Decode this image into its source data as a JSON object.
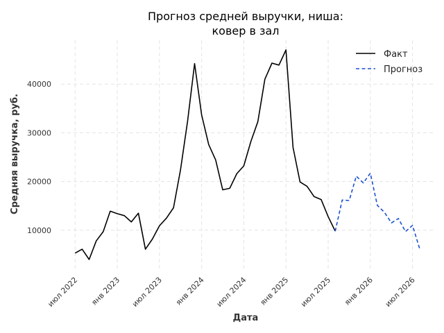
{
  "chart_data": {
    "type": "line",
    "title_lines": [
      "Прогноз средней выручки, ниша:",
      "ковер в зал"
    ],
    "xlabel": "Дата",
    "ylabel": "Средняя выручка, руб.",
    "x_ticks": [
      {
        "date": "2022-07",
        "label": "июл 2022"
      },
      {
        "date": "2023-01",
        "label": "янв 2023"
      },
      {
        "date": "2023-07",
        "label": "июл 2023"
      },
      {
        "date": "2024-01",
        "label": "янв 2024"
      },
      {
        "date": "2024-07",
        "label": "июл 2024"
      },
      {
        "date": "2025-01",
        "label": "янв 2025"
      },
      {
        "date": "2025-07",
        "label": "июл 2025"
      },
      {
        "date": "2026-01",
        "label": "янв 2026"
      },
      {
        "date": "2026-07",
        "label": "июл 2026"
      }
    ],
    "y_ticks": [
      10000,
      20000,
      30000,
      40000
    ],
    "xlim": [
      "2022-05",
      "2026-10"
    ],
    "ylim": [
      2000,
      49000
    ],
    "grid": true,
    "legend_position": "top-right",
    "series": [
      {
        "name": "Факт",
        "color": "#000000",
        "style": "solid",
        "x": [
          "2022-07",
          "2022-08",
          "2022-09",
          "2022-10",
          "2022-11",
          "2022-12",
          "2023-01",
          "2023-02",
          "2023-03",
          "2023-04",
          "2023-05",
          "2023-06",
          "2023-07",
          "2023-08",
          "2023-09",
          "2023-10",
          "2023-11",
          "2023-12",
          "2024-01",
          "2024-02",
          "2024-03",
          "2024-04",
          "2024-05",
          "2024-06",
          "2024-07",
          "2024-08",
          "2024-09",
          "2024-10",
          "2024-11",
          "2024-12",
          "2025-01",
          "2025-02",
          "2025-03",
          "2025-04",
          "2025-05",
          "2025-06",
          "2025-07",
          "2025-08"
        ],
        "values": [
          5300,
          6100,
          4000,
          7800,
          9700,
          13900,
          13400,
          13000,
          11700,
          13500,
          6100,
          8200,
          10900,
          12500,
          14600,
          22400,
          32400,
          44200,
          33700,
          27600,
          24400,
          18300,
          18600,
          21600,
          23200,
          28200,
          32300,
          41000,
          44300,
          43900,
          47000,
          27000,
          19900,
          19000,
          16900,
          16300,
          12800,
          9800
        ]
      },
      {
        "name": "Прогноз",
        "color": "#1a4fd1",
        "style": "dashed",
        "x": [
          "2025-08",
          "2025-09",
          "2025-10",
          "2025-11",
          "2025-12",
          "2026-01",
          "2026-02",
          "2026-03",
          "2026-04",
          "2026-05",
          "2026-06",
          "2026-07",
          "2026-08"
        ],
        "values": [
          9800,
          16200,
          16100,
          21100,
          19700,
          21700,
          15100,
          13700,
          11500,
          12400,
          9700,
          11000,
          6300
        ]
      }
    ]
  }
}
